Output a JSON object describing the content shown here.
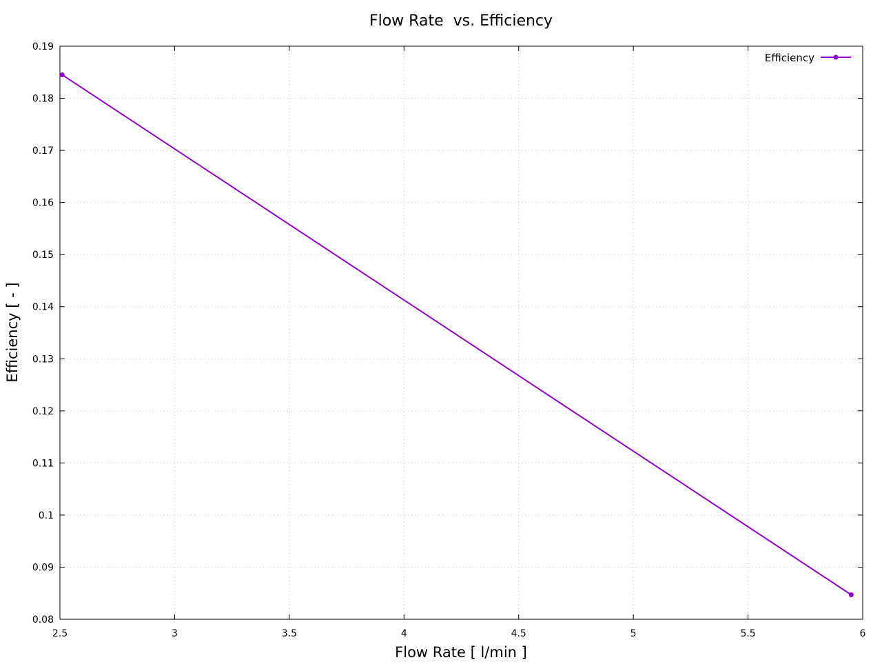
{
  "chart_data": {
    "type": "line",
    "title": "Flow Rate  vs. Efficiency",
    "xlabel": "Flow Rate [ l/min ]",
    "ylabel": "Efficiency [ - ]",
    "xlim": [
      2.5,
      6
    ],
    "ylim": [
      0.08,
      0.19
    ],
    "xticks": [
      2.5,
      3,
      3.5,
      4,
      4.5,
      5,
      5.5,
      6
    ],
    "xtick_labels": [
      "2.5",
      "3",
      "3.5",
      "4",
      "4.5",
      "5",
      "5.5",
      "6"
    ],
    "yticks": [
      0.08,
      0.09,
      0.1,
      0.11,
      0.12,
      0.13,
      0.14,
      0.15,
      0.16,
      0.17,
      0.18,
      0.19
    ],
    "ytick_labels": [
      "0.08",
      "0.09",
      "0.1",
      "0.11",
      "0.12",
      "0.13",
      "0.14",
      "0.15",
      "0.16",
      "0.17",
      "0.18",
      "0.19"
    ],
    "grid": true,
    "legend_position": "top-right",
    "series": [
      {
        "name": "Efficiency",
        "color": "#9400d3",
        "marker": "circle",
        "x": [
          2.51,
          5.95
        ],
        "y": [
          0.1845,
          0.0847
        ]
      }
    ]
  }
}
